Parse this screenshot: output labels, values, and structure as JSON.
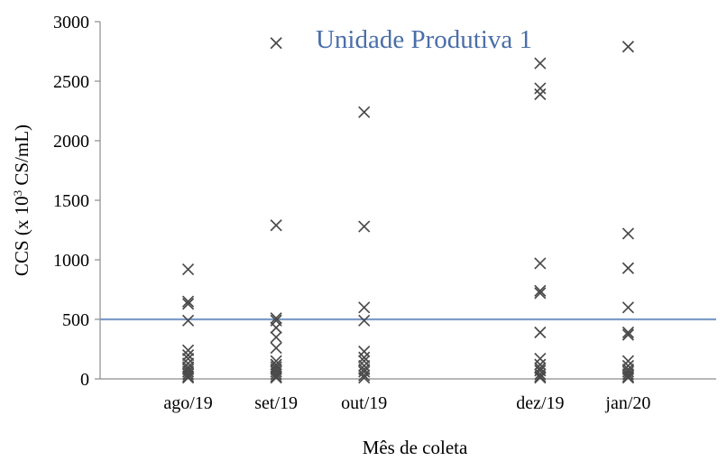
{
  "chart_data": {
    "type": "scatter",
    "title": "Unidade Produtiva 1",
    "xlabel": "Mês de coleta",
    "ylabel": "CCS (x 10³ CS/mL)",
    "ylabel_parts": {
      "prefix": "CCS (x 10",
      "sup": "3",
      "suffix": " CS/mL)"
    },
    "ylim": [
      0,
      3000
    ],
    "yticks": [
      0,
      500,
      1000,
      1500,
      2000,
      2500,
      3000
    ],
    "categories": [
      "ago/19",
      "set/19",
      "out/19",
      "dez/19",
      "jan/20"
    ],
    "category_positions": [
      1,
      2,
      3,
      5,
      6
    ],
    "xlim": [
      0,
      7
    ],
    "reference_line": {
      "y": 500,
      "color": "#7d9cc8"
    },
    "marker": "x",
    "marker_color": "#4a4a4a",
    "title_color": "#4a6ea8",
    "grid": false,
    "series": [
      {
        "category": "ago/19",
        "values": [
          920,
          650,
          630,
          490,
          240,
          200,
          170,
          130,
          100,
          80,
          60,
          40,
          20,
          10
        ]
      },
      {
        "category": "set/19",
        "values": [
          2820,
          1290,
          510,
          490,
          430,
          350,
          260,
          150,
          120,
          100,
          80,
          60,
          40,
          20,
          10
        ]
      },
      {
        "category": "out/19",
        "values": [
          2240,
          1280,
          600,
          490,
          230,
          180,
          150,
          110,
          80,
          60,
          30,
          10
        ]
      },
      {
        "category": "dez/19",
        "values": [
          2650,
          2440,
          2390,
          970,
          740,
          720,
          390,
          170,
          120,
          90,
          70,
          40,
          20,
          10
        ]
      },
      {
        "category": "jan/20",
        "values": [
          2790,
          1220,
          930,
          600,
          390,
          370,
          150,
          110,
          80,
          60,
          40,
          20,
          10
        ]
      }
    ]
  }
}
